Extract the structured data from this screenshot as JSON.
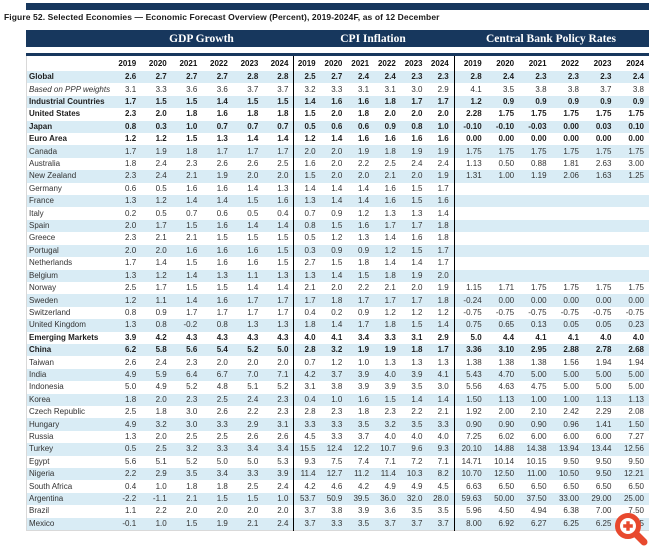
{
  "colors": {
    "navy_header": "#17375d",
    "row_stripe": "#d9ecf5",
    "group_separator": "#000000",
    "table_border": "#d9d9d9",
    "zoom_icon_accent": "#e8492e"
  },
  "icons": {
    "bottom_right": "zoom-in-icon"
  },
  "chart_data": {
    "type": "table",
    "title": "Figure 52. Selected Economies — Economic Forecast Overview (Percent), 2019-2024F, as of 12 December",
    "column_groups": [
      "GDP Growth",
      "CPI Inflation",
      "Central Bank Policy Rates"
    ],
    "years": [
      "2019",
      "2020",
      "2021",
      "2022",
      "2023",
      "2024"
    ],
    "rows": [
      {
        "label": "Global",
        "style": "bold",
        "gdp": [
          "2.6",
          "2.7",
          "2.7",
          "2.7",
          "2.8",
          "2.8"
        ],
        "cpi": [
          "2.5",
          "2.7",
          "2.4",
          "2.4",
          "2.3",
          "2.3"
        ],
        "cbr": [
          "2.8",
          "2.4",
          "2.3",
          "2.3",
          "2.3",
          "2.4"
        ]
      },
      {
        "label": "Based on PPP weights",
        "style": "italic",
        "gdp": [
          "3.1",
          "3.3",
          "3.6",
          "3.6",
          "3.7",
          "3.7"
        ],
        "cpi": [
          "3.2",
          "3.3",
          "3.1",
          "3.1",
          "3.0",
          "2.9"
        ],
        "cbr": [
          "4.1",
          "3.5",
          "3.8",
          "3.8",
          "3.7",
          "3.8"
        ]
      },
      {
        "label": "Industrial Countries",
        "style": "bold",
        "gdp": [
          "1.7",
          "1.5",
          "1.5",
          "1.4",
          "1.5",
          "1.5"
        ],
        "cpi": [
          "1.4",
          "1.6",
          "1.6",
          "1.8",
          "1.7",
          "1.7"
        ],
        "cbr": [
          "1.2",
          "0.9",
          "0.9",
          "0.9",
          "0.9",
          "0.9"
        ]
      },
      {
        "label": "United States",
        "style": "bold",
        "gdp": [
          "2.3",
          "2.0",
          "1.8",
          "1.6",
          "1.8",
          "1.8"
        ],
        "cpi": [
          "1.5",
          "2.0",
          "1.8",
          "2.0",
          "2.0",
          "2.0"
        ],
        "cbr": [
          "2.28",
          "1.75",
          "1.75",
          "1.75",
          "1.75",
          "1.75"
        ]
      },
      {
        "label": "Japan",
        "style": "bold",
        "gdp": [
          "0.8",
          "0.3",
          "1.0",
          "0.7",
          "0.7",
          "0.7"
        ],
        "cpi": [
          "0.5",
          "0.6",
          "0.6",
          "0.9",
          "0.8",
          "1.0"
        ],
        "cbr": [
          "-0.10",
          "-0.10",
          "-0.03",
          "0.00",
          "0.03",
          "0.10"
        ]
      },
      {
        "label": "Euro Area",
        "style": "bold",
        "gdp": [
          "1.2",
          "1.2",
          "1.5",
          "1.3",
          "1.4",
          "1.4"
        ],
        "cpi": [
          "1.2",
          "1.4",
          "1.6",
          "1.6",
          "1.6",
          "1.6"
        ],
        "cbr": [
          "0.00",
          "0.00",
          "0.00",
          "0.00",
          "0.00",
          "0.00"
        ]
      },
      {
        "label": "Canada",
        "style": "",
        "gdp": [
          "1.7",
          "1.9",
          "1.8",
          "1.7",
          "1.7",
          "1.7"
        ],
        "cpi": [
          "2.0",
          "2.0",
          "1.9",
          "1.8",
          "1.9",
          "1.9"
        ],
        "cbr": [
          "1.75",
          "1.75",
          "1.75",
          "1.75",
          "1.75",
          "1.75"
        ]
      },
      {
        "label": "Australia",
        "style": "",
        "gdp": [
          "1.8",
          "2.4",
          "2.3",
          "2.6",
          "2.6",
          "2.5"
        ],
        "cpi": [
          "1.6",
          "2.0",
          "2.2",
          "2.5",
          "2.4",
          "2.4"
        ],
        "cbr": [
          "1.13",
          "0.50",
          "0.88",
          "1.81",
          "2.63",
          "3.00"
        ]
      },
      {
        "label": "New Zealand",
        "style": "",
        "gdp": [
          "2.3",
          "2.4",
          "2.1",
          "1.9",
          "2.0",
          "2.0"
        ],
        "cpi": [
          "1.5",
          "2.0",
          "2.0",
          "2.1",
          "2.0",
          "1.9"
        ],
        "cbr": [
          "1.31",
          "1.00",
          "1.19",
          "2.06",
          "1.63",
          "1.25"
        ]
      },
      {
        "label": "Germany",
        "style": "",
        "gdp": [
          "0.6",
          "0.5",
          "1.6",
          "1.6",
          "1.4",
          "1.3"
        ],
        "cpi": [
          "1.4",
          "1.4",
          "1.4",
          "1.6",
          "1.5",
          "1.7"
        ],
        "cbr": [
          "",
          "",
          "",
          "",
          "",
          ""
        ]
      },
      {
        "label": "France",
        "style": "",
        "gdp": [
          "1.3",
          "1.2",
          "1.4",
          "1.4",
          "1.5",
          "1.6"
        ],
        "cpi": [
          "1.3",
          "1.4",
          "1.4",
          "1.6",
          "1.5",
          "1.6"
        ],
        "cbr": [
          "",
          "",
          "",
          "",
          "",
          ""
        ]
      },
      {
        "label": "Italy",
        "style": "",
        "gdp": [
          "0.2",
          "0.5",
          "0.7",
          "0.6",
          "0.5",
          "0.4"
        ],
        "cpi": [
          "0.7",
          "0.9",
          "1.2",
          "1.3",
          "1.3",
          "1.4"
        ],
        "cbr": [
          "",
          "",
          "",
          "",
          "",
          ""
        ]
      },
      {
        "label": "Spain",
        "style": "",
        "gdp": [
          "2.0",
          "1.7",
          "1.5",
          "1.6",
          "1.4",
          "1.4"
        ],
        "cpi": [
          "0.8",
          "1.5",
          "1.6",
          "1.7",
          "1.7",
          "1.8"
        ],
        "cbr": [
          "",
          "",
          "",
          "",
          "",
          ""
        ]
      },
      {
        "label": "Greece",
        "style": "",
        "gdp": [
          "2.3",
          "2.1",
          "2.1",
          "1.5",
          "1.5",
          "1.5"
        ],
        "cpi": [
          "0.5",
          "1.2",
          "1.3",
          "1.4",
          "1.6",
          "1.8"
        ],
        "cbr": [
          "",
          "",
          "",
          "",
          "",
          ""
        ]
      },
      {
        "label": "Portugal",
        "style": "",
        "gdp": [
          "2.0",
          "2.0",
          "1.6",
          "1.6",
          "1.6",
          "1.5"
        ],
        "cpi": [
          "0.3",
          "0.9",
          "0.9",
          "1.2",
          "1.5",
          "1.7"
        ],
        "cbr": [
          "",
          "",
          "",
          "",
          "",
          ""
        ]
      },
      {
        "label": "Netherlands",
        "style": "",
        "gdp": [
          "1.7",
          "1.4",
          "1.5",
          "1.6",
          "1.6",
          "1.5"
        ],
        "cpi": [
          "2.7",
          "1.5",
          "1.8",
          "1.4",
          "1.4",
          "1.7"
        ],
        "cbr": [
          "",
          "",
          "",
          "",
          "",
          ""
        ]
      },
      {
        "label": "Belgium",
        "style": "",
        "gdp": [
          "1.3",
          "1.2",
          "1.4",
          "1.3",
          "1.1",
          "1.3"
        ],
        "cpi": [
          "1.3",
          "1.4",
          "1.5",
          "1.8",
          "1.9",
          "2.0"
        ],
        "cbr": [
          "",
          "",
          "",
          "",
          "",
          ""
        ]
      },
      {
        "label": "Norway",
        "style": "",
        "gdp": [
          "2.5",
          "1.7",
          "1.5",
          "1.5",
          "1.4",
          "1.4"
        ],
        "cpi": [
          "2.1",
          "2.0",
          "2.2",
          "2.1",
          "2.0",
          "1.9"
        ],
        "cbr": [
          "1.15",
          "1.71",
          "1.75",
          "1.75",
          "1.75",
          "1.75"
        ]
      },
      {
        "label": "Sweden",
        "style": "",
        "gdp": [
          "1.2",
          "1.1",
          "1.4",
          "1.6",
          "1.7",
          "1.7"
        ],
        "cpi": [
          "1.7",
          "1.8",
          "1.7",
          "1.7",
          "1.7",
          "1.8"
        ],
        "cbr": [
          "-0.24",
          "0.00",
          "0.00",
          "0.00",
          "0.00",
          "0.00"
        ]
      },
      {
        "label": "Switzerland",
        "style": "",
        "gdp": [
          "0.8",
          "0.9",
          "1.7",
          "1.7",
          "1.7",
          "1.7"
        ],
        "cpi": [
          "0.4",
          "0.2",
          "0.9",
          "1.2",
          "1.2",
          "1.2"
        ],
        "cbr": [
          "-0.75",
          "-0.75",
          "-0.75",
          "-0.75",
          "-0.75",
          "-0.75"
        ]
      },
      {
        "label": "United Kingdom",
        "style": "",
        "gdp": [
          "1.3",
          "0.8",
          "-0.2",
          "0.8",
          "1.3",
          "1.3"
        ],
        "cpi": [
          "1.8",
          "1.4",
          "1.7",
          "1.8",
          "1.5",
          "1.4"
        ],
        "cbr": [
          "0.75",
          "0.65",
          "0.13",
          "0.05",
          "0.05",
          "0.23"
        ]
      },
      {
        "label": "Emerging Markets",
        "style": "bold",
        "gdp": [
          "3.9",
          "4.2",
          "4.3",
          "4.3",
          "4.3",
          "4.3"
        ],
        "cpi": [
          "4.0",
          "4.1",
          "3.4",
          "3.3",
          "3.1",
          "2.9"
        ],
        "cbr": [
          "5.0",
          "4.4",
          "4.1",
          "4.1",
          "4.0",
          "4.0"
        ]
      },
      {
        "label": "China",
        "style": "bold",
        "gdp": [
          "6.2",
          "5.8",
          "5.6",
          "5.4",
          "5.2",
          "5.0"
        ],
        "cpi": [
          "2.8",
          "3.2",
          "1.9",
          "1.9",
          "1.8",
          "1.7"
        ],
        "cbr": [
          "3.36",
          "3.10",
          "2.95",
          "2.88",
          "2.78",
          "2.68"
        ]
      },
      {
        "label": "Taiwan",
        "style": "",
        "gdp": [
          "2.6",
          "2.4",
          "2.3",
          "2.0",
          "2.0",
          "2.0"
        ],
        "cpi": [
          "0.7",
          "1.2",
          "1.0",
          "1.3",
          "1.3",
          "1.3"
        ],
        "cbr": [
          "1.38",
          "1.38",
          "1.38",
          "1.56",
          "1.94",
          "1.94"
        ]
      },
      {
        "label": "India",
        "style": "",
        "gdp": [
          "4.9",
          "5.9",
          "6.4",
          "6.7",
          "7.0",
          "7.1"
        ],
        "cpi": [
          "4.2",
          "3.7",
          "3.9",
          "4.0",
          "3.9",
          "4.1"
        ],
        "cbr": [
          "5.43",
          "4.70",
          "5.00",
          "5.00",
          "5.00",
          "5.00"
        ]
      },
      {
        "label": "Indonesia",
        "style": "",
        "gdp": [
          "5.0",
          "4.9",
          "5.2",
          "4.8",
          "5.1",
          "5.2"
        ],
        "cpi": [
          "3.1",
          "3.8",
          "3.9",
          "3.9",
          "3.5",
          "3.0"
        ],
        "cbr": [
          "5.56",
          "4.63",
          "4.75",
          "5.00",
          "5.00",
          "5.00"
        ]
      },
      {
        "label": "Korea",
        "style": "",
        "gdp": [
          "1.8",
          "2.0",
          "2.3",
          "2.5",
          "2.4",
          "2.3"
        ],
        "cpi": [
          "0.4",
          "1.0",
          "1.6",
          "1.5",
          "1.4",
          "1.4"
        ],
        "cbr": [
          "1.50",
          "1.13",
          "1.00",
          "1.00",
          "1.13",
          "1.13"
        ]
      },
      {
        "label": "Czech Republic",
        "style": "",
        "gdp": [
          "2.5",
          "1.8",
          "3.0",
          "2.6",
          "2.2",
          "2.3"
        ],
        "cpi": [
          "2.8",
          "2.3",
          "1.8",
          "2.3",
          "2.2",
          "2.1"
        ],
        "cbr": [
          "1.92",
          "2.00",
          "2.10",
          "2.42",
          "2.29",
          "2.08"
        ]
      },
      {
        "label": "Hungary",
        "style": "",
        "gdp": [
          "4.9",
          "3.2",
          "3.0",
          "3.3",
          "2.9",
          "3.1"
        ],
        "cpi": [
          "3.3",
          "3.3",
          "3.5",
          "3.2",
          "3.5",
          "3.3"
        ],
        "cbr": [
          "0.90",
          "0.90",
          "0.90",
          "0.96",
          "1.41",
          "1.50"
        ]
      },
      {
        "label": "Russia",
        "style": "",
        "gdp": [
          "1.3",
          "2.0",
          "2.5",
          "2.5",
          "2.6",
          "2.6"
        ],
        "cpi": [
          "4.5",
          "3.3",
          "3.7",
          "4.0",
          "4.0",
          "4.0"
        ],
        "cbr": [
          "7.25",
          "6.02",
          "6.00",
          "6.00",
          "6.00",
          "7.27"
        ]
      },
      {
        "label": "Turkey",
        "style": "",
        "gdp": [
          "0.5",
          "2.5",
          "3.2",
          "3.3",
          "3.4",
          "3.4"
        ],
        "cpi": [
          "15.5",
          "12.4",
          "12.2",
          "10.7",
          "9.6",
          "9.3"
        ],
        "cbr": [
          "20.10",
          "14.88",
          "14.38",
          "13.94",
          "13.44",
          "12.56"
        ]
      },
      {
        "label": "Egypt",
        "style": "",
        "gdp": [
          "5.6",
          "5.1",
          "5.2",
          "5.0",
          "5.0",
          "5.3"
        ],
        "cpi": [
          "9.3",
          "7.5",
          "7.4",
          "7.1",
          "7.2",
          "7.1"
        ],
        "cbr": [
          "14.71",
          "10.14",
          "10.15",
          "9.50",
          "9.50",
          "9.50"
        ]
      },
      {
        "label": "Nigeria",
        "style": "",
        "gdp": [
          "2.2",
          "2.9",
          "3.5",
          "3.4",
          "3.3",
          "3.9"
        ],
        "cpi": [
          "11.4",
          "12.7",
          "11.2",
          "11.4",
          "10.3",
          "8.2"
        ],
        "cbr": [
          "10.70",
          "12.50",
          "11.00",
          "10.50",
          "9.50",
          "12.21"
        ]
      },
      {
        "label": "South Africa",
        "style": "",
        "gdp": [
          "0.4",
          "1.0",
          "1.8",
          "1.8",
          "2.5",
          "2.4"
        ],
        "cpi": [
          "4.2",
          "4.6",
          "4.2",
          "4.9",
          "4.9",
          "4.5"
        ],
        "cbr": [
          "6.63",
          "6.50",
          "6.50",
          "6.50",
          "6.50",
          "6.50"
        ]
      },
      {
        "label": "Argentina",
        "style": "",
        "gdp": [
          "-2.2",
          "-1.1",
          "2.1",
          "1.5",
          "1.5",
          "1.0"
        ],
        "cpi": [
          "53.7",
          "50.9",
          "39.5",
          "36.0",
          "32.0",
          "28.0"
        ],
        "cbr": [
          "59.63",
          "50.00",
          "37.50",
          "33.00",
          "29.00",
          "25.00"
        ]
      },
      {
        "label": "Brazil",
        "style": "",
        "gdp": [
          "1.1",
          "2.2",
          "2.0",
          "2.0",
          "2.0",
          "2.0"
        ],
        "cpi": [
          "3.7",
          "3.8",
          "3.9",
          "3.6",
          "3.5",
          "3.5"
        ],
        "cbr": [
          "5.96",
          "4.50",
          "4.94",
          "6.38",
          "7.00",
          "7.50"
        ]
      },
      {
        "label": "Mexico",
        "style": "",
        "gdp": [
          "-0.1",
          "1.0",
          "1.5",
          "1.9",
          "2.1",
          "2.4"
        ],
        "cpi": [
          "3.7",
          "3.3",
          "3.5",
          "3.7",
          "3.7",
          "3.7"
        ],
        "cbr": [
          "8.00",
          "6.92",
          "6.27",
          "6.25",
          "6.25",
          "6.25"
        ]
      }
    ]
  }
}
